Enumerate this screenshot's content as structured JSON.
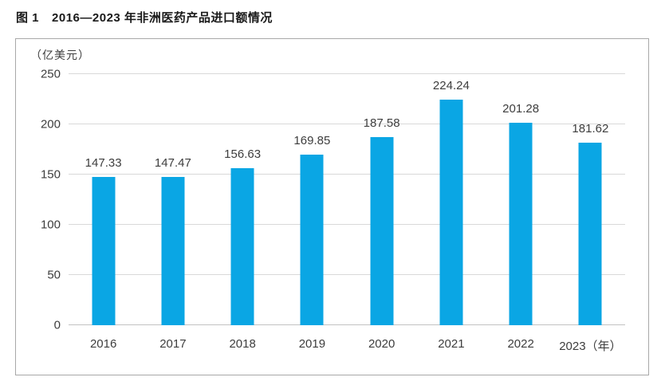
{
  "page": {
    "title_prefix": "图 1",
    "title": "2016—2023 年非洲医药产品进口额情况"
  },
  "chart_data": {
    "type": "bar",
    "title": "图 1 2016—2023 年非洲医药产品进口额情况",
    "unit_label": "（亿美元）",
    "ylabel": "亿美元",
    "xlabel": "年",
    "x_suffix_last": "（年）",
    "categories": [
      "2016",
      "2017",
      "2018",
      "2019",
      "2020",
      "2021",
      "2022",
      "2023"
    ],
    "values": [
      147.33,
      147.47,
      156.63,
      169.85,
      187.58,
      224.24,
      201.28,
      181.62
    ],
    "value_labels": [
      "147.33",
      "147.47",
      "156.63",
      "169.85",
      "187.58",
      "224.24",
      "201.28",
      "181.62"
    ],
    "ylim": [
      0,
      250
    ],
    "yticks": [
      0,
      50,
      100,
      150,
      200,
      250
    ],
    "grid": true,
    "legend": "none",
    "bar_color": "#0aa6e4",
    "grid_color": "#d9d9d9",
    "baseline_color": "#c2c2c2",
    "frame_border_color": "#a8a8a8",
    "label_color": "#3d3d3d"
  }
}
